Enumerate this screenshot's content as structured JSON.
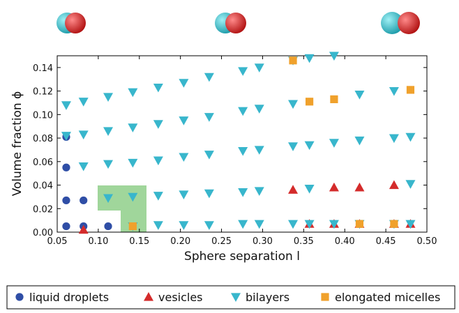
{
  "chart_data": {
    "type": "scatter",
    "x_label": "Sphere separation l",
    "y_label": "Volume fraction ϕ",
    "xlim": [
      0.05,
      0.5
    ],
    "ylim": [
      0,
      0.15
    ],
    "xticks": [
      0.05,
      {
        "value": 0.1,
        "label": "0.10"
      },
      0.15,
      {
        "value": 0.2,
        "label": "0.20"
      },
      0.25,
      {
        "value": 0.3,
        "label": "0.30"
      },
      0.35,
      {
        "value": 0.4,
        "label": "0.40"
      },
      0.45,
      {
        "value": 0.5,
        "label": "0.50"
      }
    ],
    "yticks": [
      {
        "value": 0,
        "label": "0.00"
      },
      0.02,
      0.04,
      0.06,
      0.08,
      {
        "value": 0.1,
        "label": "0.10"
      },
      0.12,
      0.14
    ],
    "series": [
      {
        "name": "liquid droplets",
        "color": "#2f4ea6",
        "marker": "circle",
        "x": [
          0.061,
          0.061,
          0.061,
          0.061,
          0.082,
          0.082,
          0.112
        ],
        "values": [
          0.081,
          0.055,
          0.027,
          0.005,
          0.027,
          0.005,
          0.005
        ]
      },
      {
        "name": "vesicles",
        "color": "#d42b2b",
        "marker": "triangle-up",
        "x": [
          0.082,
          0.337,
          0.387,
          0.418,
          0.46,
          0.357,
          0.387,
          0.418,
          0.46,
          0.48
        ],
        "values": [
          0.002,
          0.036,
          0.038,
          0.038,
          0.04,
          0.007,
          0.007,
          0.007,
          0.007,
          0.007
        ]
      },
      {
        "name": "bilayers",
        "color": "#38b6cc",
        "marker": "triangle-down",
        "x": [
          0.061,
          0.082,
          0.112,
          0.142,
          0.173,
          0.204,
          0.235,
          0.276,
          0.296,
          0.337,
          0.357,
          0.387,
          0.061,
          0.082,
          0.112,
          0.142,
          0.173,
          0.204,
          0.235,
          0.276,
          0.296,
          0.337,
          0.418,
          0.46,
          0.082,
          0.112,
          0.142,
          0.173,
          0.204,
          0.235,
          0.276,
          0.296,
          0.337,
          0.357,
          0.387,
          0.418,
          0.46,
          0.48,
          0.112,
          0.142,
          0.173,
          0.204,
          0.235,
          0.276,
          0.296,
          0.357,
          0.48,
          0.142,
          0.173,
          0.204,
          0.235,
          0.276,
          0.296,
          0.337,
          0.357,
          0.387,
          0.418,
          0.46,
          0.48
        ],
        "values": [
          0.108,
          0.111,
          0.115,
          0.119,
          0.123,
          0.127,
          0.132,
          0.137,
          0.14,
          0.146,
          0.148,
          0.15,
          0.082,
          0.083,
          0.086,
          0.089,
          0.092,
          0.095,
          0.098,
          0.103,
          0.105,
          0.109,
          0.117,
          0.12,
          0.056,
          0.058,
          0.059,
          0.061,
          0.064,
          0.066,
          0.069,
          0.07,
          0.073,
          0.074,
          0.076,
          0.078,
          0.08,
          0.081,
          0.029,
          0.03,
          0.031,
          0.032,
          0.033,
          0.034,
          0.035,
          0.037,
          0.041,
          0.005,
          0.006,
          0.006,
          0.006,
          0.007,
          0.007,
          0.007,
          0.007,
          0.007,
          0.007,
          0.007,
          0.007
        ]
      },
      {
        "name": "elongated micelles",
        "color": "#f0a12c",
        "marker": "square",
        "x": [
          0.337,
          0.357,
          0.387,
          0.48,
          0.142,
          0.418,
          0.46
        ],
        "values": [
          0.146,
          0.111,
          0.113,
          0.121,
          0.005,
          0.007,
          0.007
        ]
      }
    ]
  }
}
